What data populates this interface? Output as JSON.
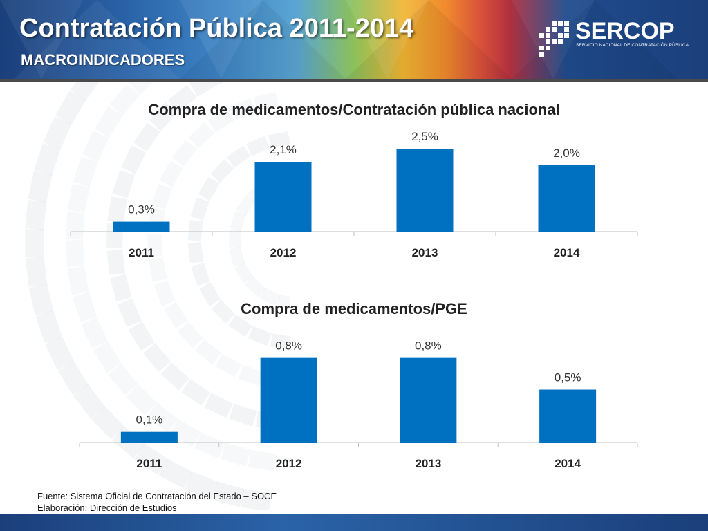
{
  "header": {
    "title": "Contratación Pública 2011-2014",
    "subtitle": "MACROINDICADORES",
    "logo_text": "SERCOP",
    "logo_tagline": "SERVICIO NACIONAL DE CONTRATACIÓN PÚBLICA"
  },
  "footer": {
    "source": "Fuente: Sistema Oficial de Contratación del Estado – SOCE",
    "elaboration": "Elaboración: Dirección de Estudios"
  },
  "colors": {
    "bar": "#0070c0",
    "header_dark": "#1b3f7a"
  },
  "chart_data": [
    {
      "type": "bar",
      "title": "Compra de medicamentos/Contratación pública nacional",
      "categories": [
        "2011",
        "2012",
        "2013",
        "2014"
      ],
      "values": [
        0.3,
        2.1,
        2.5,
        2.0
      ],
      "labels": [
        "0,3%",
        "2,1%",
        "2,5%",
        "2,0%"
      ],
      "ylim": [
        0,
        2.5
      ],
      "grid": false
    },
    {
      "type": "bar",
      "title": "Compra de medicamentos/PGE",
      "categories": [
        "2011",
        "2012",
        "2013",
        "2014"
      ],
      "values": [
        0.1,
        0.8,
        0.8,
        0.5
      ],
      "labels": [
        "0,1%",
        "0,8%",
        "0,8%",
        "0,5%"
      ],
      "ylim": [
        0,
        0.85
      ],
      "grid": false
    }
  ]
}
